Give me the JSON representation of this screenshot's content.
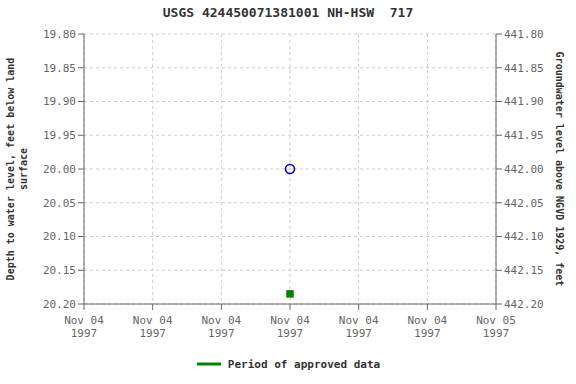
{
  "chart_data": {
    "type": "scatter",
    "title": "USGS 424450071381001 NH-HSW  717",
    "ylabel": "Depth to water level, feet below land\nsurface",
    "y2label": "Groundwater level above NGVD 1929, feet",
    "categories": [
      "Nov 04\n1997",
      "Nov 04\n1997",
      "Nov 04\n1997",
      "Nov 04\n1997",
      "Nov 04\n1997",
      "Nov 04\n1997",
      "Nov 05\n1997"
    ],
    "series": [
      {
        "color": "#0000cc",
        "marker": "open_circle",
        "values": [
          null,
          null,
          null,
          20.0,
          null,
          null,
          null
        ]
      },
      {
        "name": "Period of approved data",
        "color": "#008000",
        "marker": "square",
        "values": [
          null,
          null,
          null,
          20.185,
          null,
          null,
          null
        ]
      }
    ],
    "ylim": [
      20.2,
      19.8
    ],
    "yticks": [
      {
        "value": 19.8,
        "label": "19.80"
      },
      19.85,
      {
        "value": 19.9,
        "label": "19.90"
      },
      19.95,
      {
        "value": 20.0,
        "label": "20.00"
      },
      20.05,
      {
        "value": 20.1,
        "label": "20.10"
      },
      20.15,
      {
        "value": 20.2,
        "label": "20.20"
      }
    ],
    "y2lim": [
      442.2,
      441.8
    ],
    "y2ticks": [
      {
        "value": 442.2,
        "label": "442.20"
      },
      442.15,
      {
        "value": 442.1,
        "label": "442.10"
      },
      442.05,
      {
        "value": 442.0,
        "label": "442.00"
      },
      441.95,
      {
        "value": 441.9,
        "label": "441.90"
      },
      441.85,
      {
        "value": 441.8,
        "label": "441.80"
      }
    ],
    "grid": true
  }
}
